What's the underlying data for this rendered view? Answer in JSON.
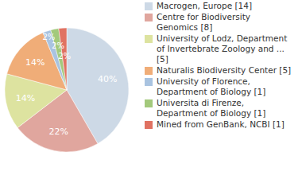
{
  "chart_data": {
    "type": "pie",
    "categories": [
      "Macrogen, Europe [14]",
      "Centre for Biodiversity Genomics [8]",
      "University of Lodz, Department of Invertebrate Zoology and ... [5]",
      "Naturalis Biodiversity Center [5]",
      "University of Florence, Department of Biology [1]",
      "Universita di Firenze, Department of Biology [1]",
      "Mined from GenBank, NCBI [1]"
    ],
    "values": [
      40,
      22,
      14,
      14,
      2,
      2,
      2
    ],
    "value_labels": [
      "40%",
      "22%",
      "14%",
      "14%",
      "2%",
      "2%",
      "2%"
    ],
    "colors": [
      "#cdd9e6",
      "#e0a69e",
      "#dde3a0",
      "#f0ad78",
      "#a9c3e0",
      "#a3c97c",
      "#e07262"
    ],
    "data_labels": true,
    "legend": "right"
  }
}
